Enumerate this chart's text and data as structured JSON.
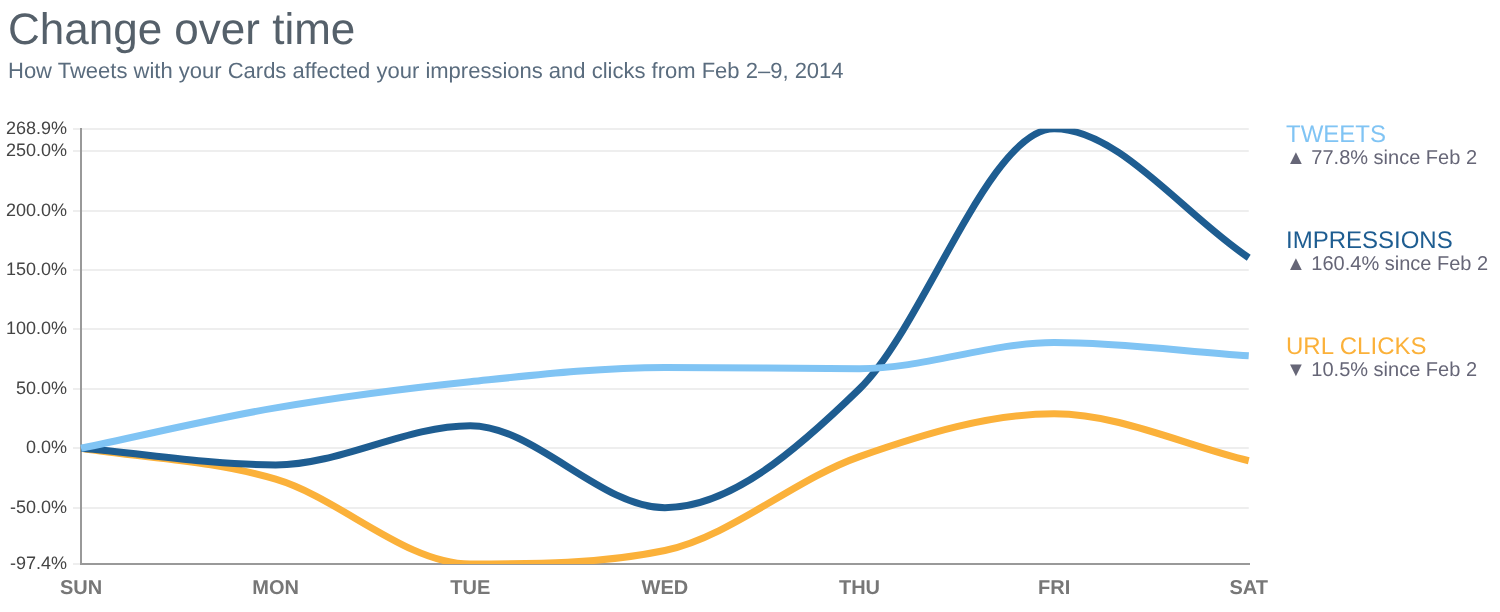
{
  "chart_data": {
    "type": "line",
    "title": "Change over time",
    "subtitle": "How Tweets with your Cards affected your impressions and clicks from Feb 2–9, 2014",
    "categories": [
      "SUN",
      "MON",
      "TUE",
      "WED",
      "THU",
      "FRI",
      "SAT"
    ],
    "series": [
      {
        "name": "TWEETS",
        "color": "#80c4f4",
        "values": [
          0,
          34,
          56,
          68,
          67,
          89,
          77.8
        ]
      },
      {
        "name": "IMPRESSIONS",
        "color": "#1e5d91",
        "values": [
          0,
          -14,
          19,
          -50,
          50,
          268.9,
          160.4
        ]
      },
      {
        "name": "URL CLICKS",
        "color": "#fbb13a",
        "values": [
          0,
          -26,
          -97.4,
          -86,
          -7,
          29,
          -10.5
        ]
      }
    ],
    "annotations": [
      "▲ 77.8% since Feb 2",
      "▲ 160.4% since Feb 2",
      "▼ 10.5% since Feb 2"
    ],
    "ylim": [
      -97.4,
      268.9
    ],
    "yticks": [
      {
        "value": -97.4,
        "label": "-97.4%"
      },
      {
        "value": -50,
        "label": "-50.0%"
      },
      {
        "value": 0,
        "label": "0.0%"
      },
      {
        "value": 50,
        "label": "50.0%"
      },
      {
        "value": 100,
        "label": "100.0%"
      },
      {
        "value": 150,
        "label": "150.0%"
      },
      {
        "value": 200,
        "label": "200.0%"
      },
      {
        "value": 250,
        "label": "250.0%"
      },
      {
        "value": 268.9,
        "label": "268.9%"
      }
    ],
    "grid": "y",
    "legend": "right",
    "marker": "none",
    "line_style": "solid"
  }
}
